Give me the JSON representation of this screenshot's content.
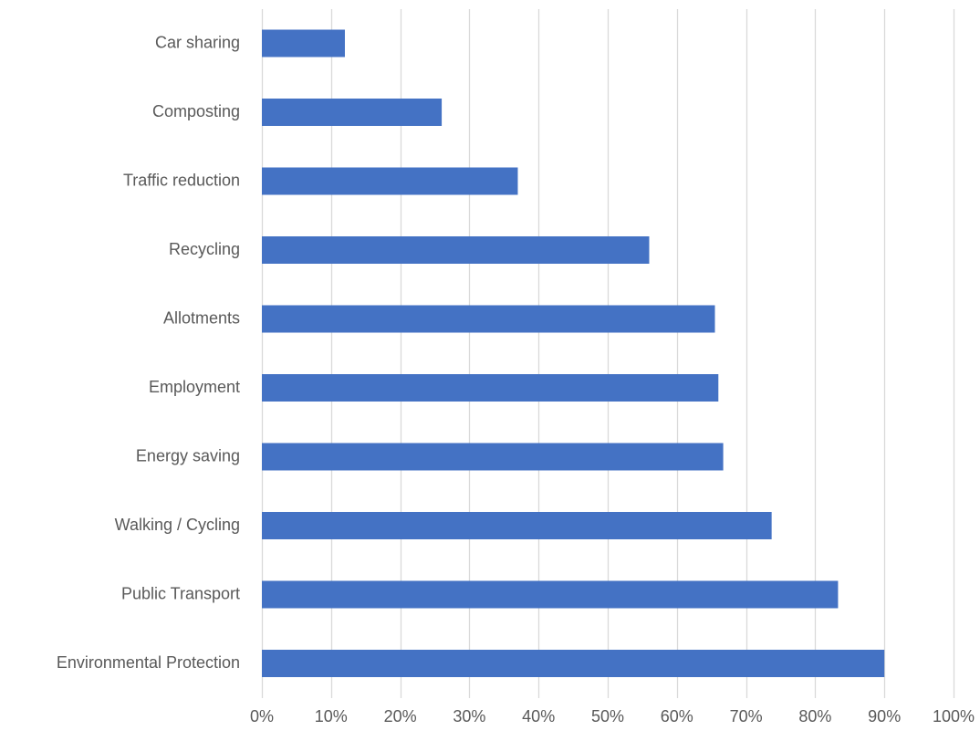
{
  "chart_data": {
    "type": "bar",
    "orientation": "horizontal",
    "categories": [
      "Car sharing",
      "Composting",
      "Traffic reduction",
      "Recycling",
      "Allotments",
      "Employment",
      "Energy saving",
      "Walking / Cycling",
      "Public Transport",
      "Environmental Protection"
    ],
    "values": [
      12,
      26,
      37,
      56,
      65.5,
      66,
      66.7,
      73.7,
      83.3,
      90
    ],
    "xlim": [
      0,
      100
    ],
    "x_ticks": [
      0,
      10,
      20,
      30,
      40,
      50,
      60,
      70,
      80,
      90,
      100
    ],
    "x_tick_labels": [
      "0%",
      "10%",
      "20%",
      "30%",
      "40%",
      "50%",
      "60%",
      "70%",
      "80%",
      "90%",
      "100%"
    ],
    "title": "",
    "xlabel": "",
    "ylabel": "",
    "grid": "vertical",
    "legend": "none",
    "bar_color": "#4472C4",
    "grid_color": "#D9D9D9",
    "text_color": "#595959"
  }
}
